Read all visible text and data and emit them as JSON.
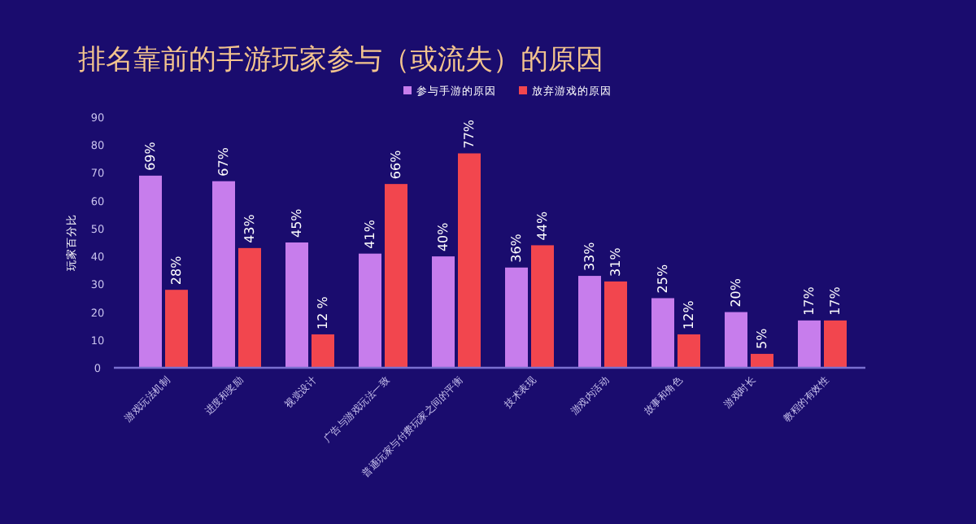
{
  "chart_data": {
    "type": "bar",
    "title": "排名靠前的手游玩家参与（或流失）的原因",
    "ylabel": "玩家百分比",
    "categories": [
      "游戏玩法机制",
      "进度和奖励",
      "视觉设计",
      "广告与游戏玩法一致",
      "普通玩家与付费玩家之间的平衡",
      "技术表现",
      "游戏内活动",
      "故事和角色",
      "游戏时长",
      "教程的有效性"
    ],
    "series": [
      {
        "name": "参与手游的原因",
        "color": "#c77dec",
        "values": [
          69,
          67,
          45,
          41,
          40,
          36,
          33,
          25,
          20,
          17
        ],
        "value_labels": [
          "69%",
          "67%",
          "45%",
          "41%",
          "40%",
          "36%",
          "33%",
          "25%",
          "20%",
          "17%"
        ]
      },
      {
        "name": "放弃游戏的原因",
        "color": "#f2464e",
        "values": [
          28,
          43,
          12,
          66,
          77,
          44,
          31,
          12,
          5,
          17
        ],
        "value_labels": [
          "28%",
          "43%",
          "12 %",
          "66%",
          "77%",
          "44%",
          "31%",
          "12%",
          "5%",
          "17%"
        ]
      }
    ],
    "ylim": [
      0,
      90
    ],
    "yticks": [
      0,
      10,
      20,
      30,
      40,
      50,
      60,
      70,
      80,
      90
    ],
    "legend": "top",
    "grid": false
  }
}
